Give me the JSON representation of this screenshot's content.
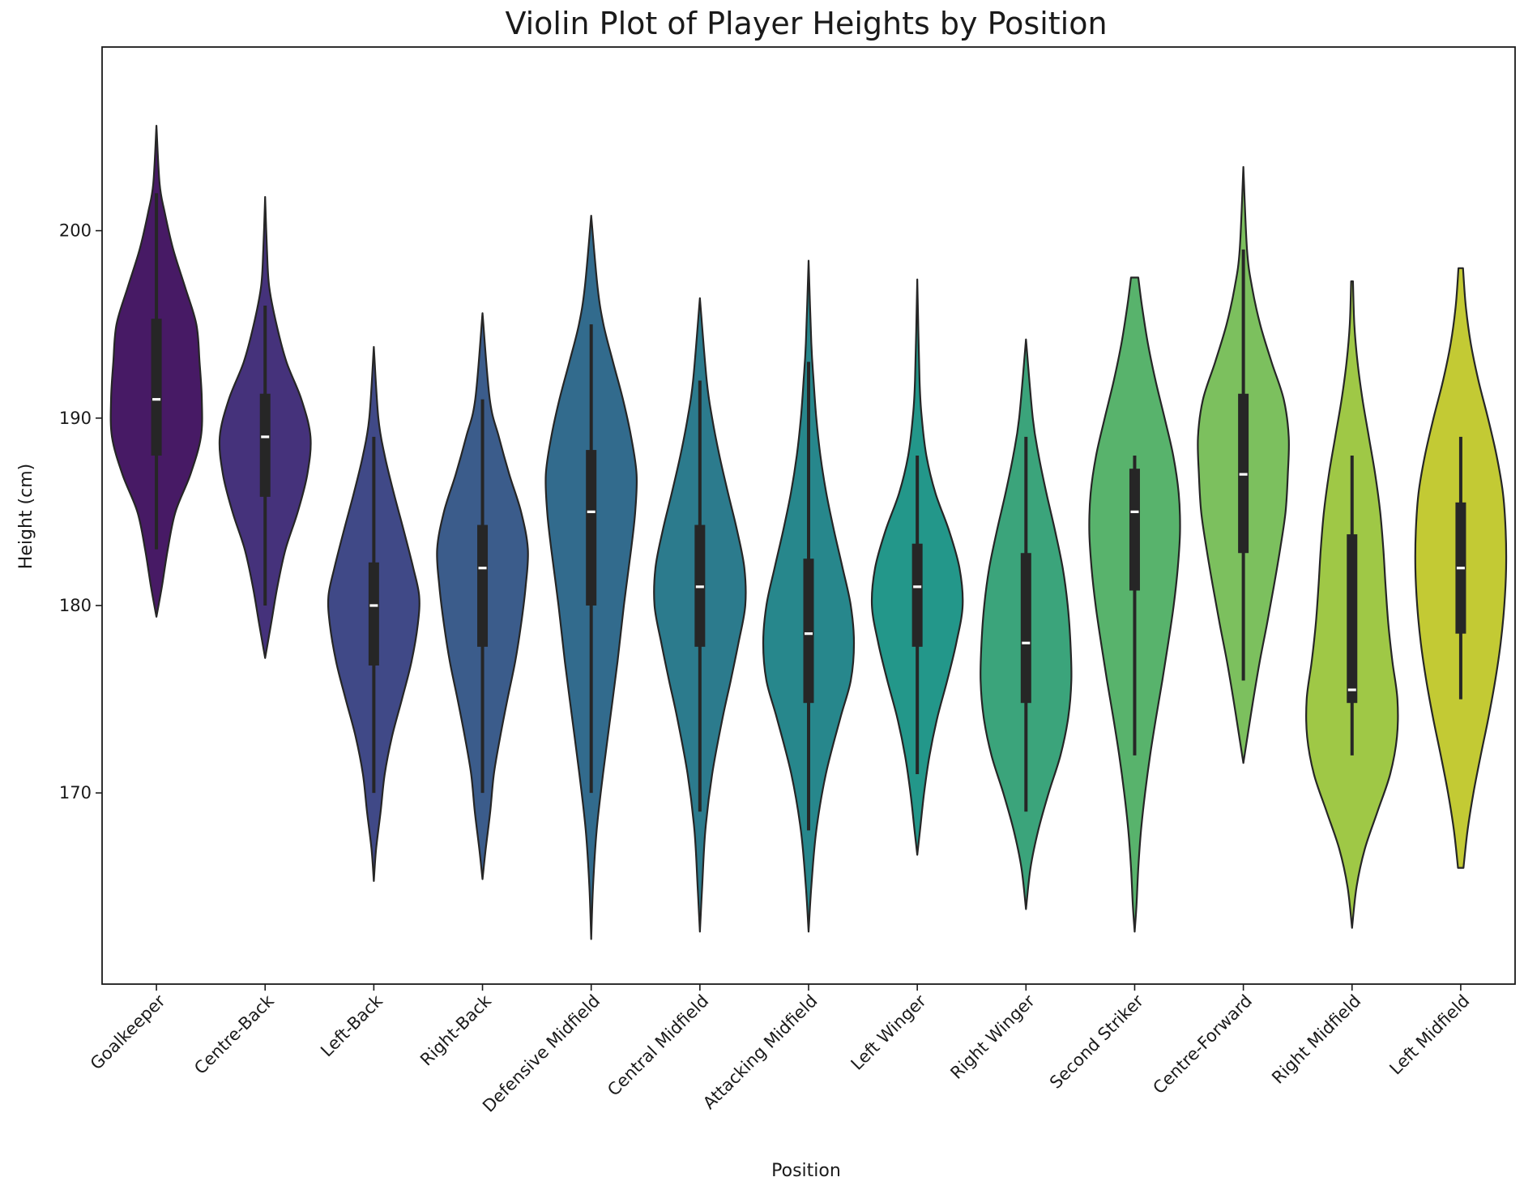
{
  "chart_data": {
    "type": "violin",
    "title": "Violin Plot of Player Heights by Position",
    "xlabel": "Position",
    "ylabel": "Height (cm)",
    "ylim": [
      159.8,
      209.8
    ],
    "yticks": [
      170,
      180,
      190,
      200
    ],
    "grid": false,
    "legend": "none",
    "categories": [
      "Goalkeeper",
      "Centre-Back",
      "Left-Back",
      "Right-Back",
      "Defensive Midfield",
      "Central Midfield",
      "Attacking Midfield",
      "Left Winger",
      "Right Winger",
      "Second Striker",
      "Centre-Forward",
      "Right Midfield",
      "Left Midfield"
    ],
    "colors": [
      "#471a65",
      "#45327b",
      "#404987",
      "#3b5c8b",
      "#326b8d",
      "#2c7b8d",
      "#27878c",
      "#23978a",
      "#3ba47b",
      "#58b36c",
      "#7cc05e",
      "#9fc846",
      "#c3ca34"
    ],
    "stats": [
      {
        "position": "Goalkeeper",
        "min": 183,
        "q1": 188,
        "median": 191,
        "q3": 195.3,
        "max": 202,
        "kde": [
          [
            179.4,
            0
          ],
          [
            181,
            0.12
          ],
          [
            183,
            0.25
          ],
          [
            185,
            0.42
          ],
          [
            187,
            0.75
          ],
          [
            189,
            0.98
          ],
          [
            191,
            1
          ],
          [
            193,
            0.95
          ],
          [
            195,
            0.88
          ],
          [
            197,
            0.63
          ],
          [
            199,
            0.37
          ],
          [
            201,
            0.18
          ],
          [
            202.5,
            0.07
          ],
          [
            205.6,
            0
          ]
        ]
      },
      {
        "position": "Centre-Back",
        "min": 180,
        "q1": 185.8,
        "median": 189,
        "q3": 191.3,
        "max": 196,
        "kde": [
          [
            177.2,
            0
          ],
          [
            179,
            0.13
          ],
          [
            181,
            0.27
          ],
          [
            183,
            0.45
          ],
          [
            185,
            0.72
          ],
          [
            187,
            0.93
          ],
          [
            189,
            1
          ],
          [
            191,
            0.8
          ],
          [
            193,
            0.47
          ],
          [
            195,
            0.25
          ],
          [
            197,
            0.09
          ],
          [
            199,
            0.04
          ],
          [
            201.8,
            0
          ]
        ]
      },
      {
        "position": "Left-Back",
        "min": 170,
        "q1": 176.8,
        "median": 180,
        "q3": 182.3,
        "max": 189,
        "kde": [
          [
            165.3,
            0
          ],
          [
            167,
            0.05
          ],
          [
            169,
            0.15
          ],
          [
            171,
            0.24
          ],
          [
            173,
            0.4
          ],
          [
            175,
            0.62
          ],
          [
            177,
            0.83
          ],
          [
            179,
            0.97
          ],
          [
            180.5,
            1
          ],
          [
            182,
            0.87
          ],
          [
            184,
            0.66
          ],
          [
            186,
            0.44
          ],
          [
            188,
            0.24
          ],
          [
            190,
            0.1
          ],
          [
            193.8,
            0
          ]
        ]
      },
      {
        "position": "Right-Back",
        "min": 170,
        "q1": 177.8,
        "median": 182,
        "q3": 184.3,
        "max": 191,
        "kde": [
          [
            165.4,
            0
          ],
          [
            167,
            0.07
          ],
          [
            169,
            0.17
          ],
          [
            171,
            0.25
          ],
          [
            173,
            0.39
          ],
          [
            175,
            0.55
          ],
          [
            177,
            0.72
          ],
          [
            179,
            0.85
          ],
          [
            181,
            0.95
          ],
          [
            183,
            1
          ],
          [
            185,
            0.85
          ],
          [
            187,
            0.59
          ],
          [
            189,
            0.36
          ],
          [
            191,
            0.16
          ],
          [
            195.6,
            0
          ]
        ]
      },
      {
        "position": "Defensive Midfield",
        "min": 170,
        "q1": 180,
        "median": 185,
        "q3": 188.3,
        "max": 195,
        "kde": [
          [
            162.2,
            0
          ],
          [
            165,
            0.04
          ],
          [
            168,
            0.12
          ],
          [
            171,
            0.26
          ],
          [
            174,
            0.42
          ],
          [
            177,
            0.58
          ],
          [
            180,
            0.72
          ],
          [
            183,
            0.88
          ],
          [
            185,
            0.97
          ],
          [
            187,
            1
          ],
          [
            189,
            0.88
          ],
          [
            191,
            0.7
          ],
          [
            193,
            0.48
          ],
          [
            195,
            0.27
          ],
          [
            197,
            0.14
          ],
          [
            200.8,
            0
          ]
        ]
      },
      {
        "position": "Central Midfield",
        "min": 169,
        "q1": 177.8,
        "median": 181,
        "q3": 184.3,
        "max": 192,
        "kde": [
          [
            162.6,
            0
          ],
          [
            165,
            0.05
          ],
          [
            168,
            0.12
          ],
          [
            171,
            0.27
          ],
          [
            174,
            0.5
          ],
          [
            176,
            0.68
          ],
          [
            178,
            0.85
          ],
          [
            180,
            1
          ],
          [
            182,
            0.98
          ],
          [
            184,
            0.82
          ],
          [
            186,
            0.62
          ],
          [
            188,
            0.43
          ],
          [
            190,
            0.27
          ],
          [
            192,
            0.15
          ],
          [
            196.4,
            0
          ]
        ]
      },
      {
        "position": "Attacking Midfield",
        "min": 168,
        "q1": 174.8,
        "median": 178.5,
        "q3": 182.5,
        "max": 193,
        "kde": [
          [
            162.6,
            0
          ],
          [
            165,
            0.06
          ],
          [
            168,
            0.17
          ],
          [
            171,
            0.38
          ],
          [
            174,
            0.7
          ],
          [
            176,
            0.93
          ],
          [
            178,
            1
          ],
          [
            180,
            0.93
          ],
          [
            182,
            0.75
          ],
          [
            184,
            0.56
          ],
          [
            186,
            0.39
          ],
          [
            188,
            0.26
          ],
          [
            190,
            0.17
          ],
          [
            192,
            0.11
          ],
          [
            194,
            0.06
          ],
          [
            198.4,
            0
          ]
        ]
      },
      {
        "position": "Left Winger",
        "min": 171,
        "q1": 177.8,
        "median": 181,
        "q3": 183.3,
        "max": 188,
        "kde": [
          [
            166.7,
            0
          ],
          [
            168,
            0.06
          ],
          [
            170,
            0.15
          ],
          [
            172,
            0.27
          ],
          [
            174,
            0.44
          ],
          [
            176,
            0.66
          ],
          [
            178,
            0.86
          ],
          [
            180,
            1
          ],
          [
            182,
            0.93
          ],
          [
            184,
            0.7
          ],
          [
            186,
            0.4
          ],
          [
            188,
            0.2
          ],
          [
            190,
            0.1
          ],
          [
            192,
            0.05
          ],
          [
            197.4,
            0
          ]
        ]
      },
      {
        "position": "Right Winger",
        "min": 169,
        "q1": 174.8,
        "median": 178,
        "q3": 182.8,
        "max": 189,
        "kde": [
          [
            163.8,
            0
          ],
          [
            166,
            0.1
          ],
          [
            168,
            0.27
          ],
          [
            170,
            0.5
          ],
          [
            172,
            0.76
          ],
          [
            174,
            0.93
          ],
          [
            176,
            1
          ],
          [
            178,
            0.98
          ],
          [
            180,
            0.92
          ],
          [
            182,
            0.81
          ],
          [
            184,
            0.64
          ],
          [
            186,
            0.45
          ],
          [
            188,
            0.28
          ],
          [
            190,
            0.15
          ],
          [
            194.2,
            0
          ]
        ]
      },
      {
        "position": "Second Striker",
        "min": 172,
        "q1": 180.8,
        "median": 185,
        "q3": 187.3,
        "max": 188,
        "kde": [
          [
            162.6,
            0
          ],
          [
            164,
            0.04
          ],
          [
            166,
            0.08
          ],
          [
            168,
            0.14
          ],
          [
            170,
            0.23
          ],
          [
            172,
            0.34
          ],
          [
            174,
            0.47
          ],
          [
            176,
            0.61
          ],
          [
            178,
            0.74
          ],
          [
            180,
            0.86
          ],
          [
            182,
            0.95
          ],
          [
            184,
            1
          ],
          [
            186,
            0.97
          ],
          [
            188,
            0.85
          ],
          [
            190,
            0.66
          ],
          [
            192,
            0.46
          ],
          [
            194,
            0.29
          ],
          [
            196,
            0.16
          ],
          [
            197.5,
            0.08
          ]
        ]
      },
      {
        "position": "Centre-Forward",
        "min": 176,
        "q1": 182.8,
        "median": 187,
        "q3": 191.3,
        "max": 199,
        "kde": [
          [
            171.6,
            0
          ],
          [
            173,
            0.09
          ],
          [
            175,
            0.22
          ],
          [
            177,
            0.36
          ],
          [
            179,
            0.52
          ],
          [
            181,
            0.67
          ],
          [
            183,
            0.81
          ],
          [
            185,
            0.93
          ],
          [
            187,
            0.98
          ],
          [
            189,
            1
          ],
          [
            191,
            0.89
          ],
          [
            193,
            0.62
          ],
          [
            195,
            0.37
          ],
          [
            197,
            0.19
          ],
          [
            199,
            0.08
          ],
          [
            203.4,
            0
          ]
        ]
      },
      {
        "position": "Right Midfield",
        "min": 172,
        "q1": 174.8,
        "median": 175.5,
        "q3": 183.8,
        "max": 188,
        "kde": [
          [
            162.8,
            0
          ],
          [
            165,
            0.1
          ],
          [
            167,
            0.28
          ],
          [
            169,
            0.56
          ],
          [
            171,
            0.84
          ],
          [
            173,
            0.99
          ],
          [
            175,
            1
          ],
          [
            177,
            0.89
          ],
          [
            179,
            0.8
          ],
          [
            181,
            0.74
          ],
          [
            183,
            0.69
          ],
          [
            185,
            0.62
          ],
          [
            187,
            0.51
          ],
          [
            189,
            0.37
          ],
          [
            191,
            0.23
          ],
          [
            193,
            0.12
          ],
          [
            195,
            0.05
          ],
          [
            197.3,
            0.02
          ]
        ]
      },
      {
        "position": "Left Midfield",
        "min": 175,
        "q1": 178.5,
        "median": 182,
        "q3": 185.5,
        "max": 189,
        "kde": [
          [
            166,
            0.06
          ],
          [
            168,
            0.15
          ],
          [
            170,
            0.28
          ],
          [
            172,
            0.44
          ],
          [
            174,
            0.61
          ],
          [
            176,
            0.76
          ],
          [
            178,
            0.88
          ],
          [
            180,
            0.96
          ],
          [
            182,
            1
          ],
          [
            184,
            0.99
          ],
          [
            186,
            0.93
          ],
          [
            188,
            0.79
          ],
          [
            190,
            0.6
          ],
          [
            192,
            0.39
          ],
          [
            194,
            0.22
          ],
          [
            196,
            0.11
          ],
          [
            198,
            0.05
          ]
        ]
      }
    ]
  }
}
